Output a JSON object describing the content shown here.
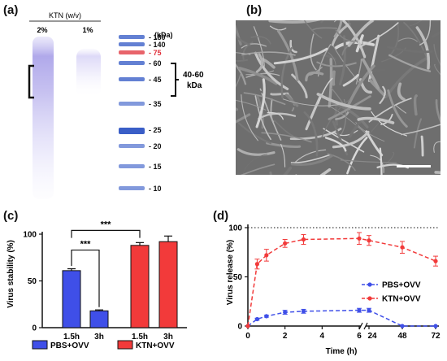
{
  "panel_a": {
    "label": "(a)",
    "header": "KTN (w/v)",
    "lanes": [
      "2%",
      "1%"
    ],
    "unit": "(kDa)",
    "markers": [
      {
        "text": "180",
        "kda": 180,
        "highlight": false
      },
      {
        "text": "140",
        "kda": 140,
        "highlight": false
      },
      {
        "text": "75",
        "kda": 75,
        "highlight": true
      },
      {
        "text": "60",
        "kda": 60,
        "highlight": false
      },
      {
        "text": "45",
        "kda": 45,
        "highlight": false
      },
      {
        "text": "35",
        "kda": 35,
        "highlight": false
      },
      {
        "text": "25",
        "kda": 25,
        "highlight": false
      },
      {
        "text": "20",
        "kda": 20,
        "highlight": false
      },
      {
        "text": "15",
        "kda": 15,
        "highlight": false
      },
      {
        "text": "10",
        "kda": 10,
        "highlight": false
      }
    ],
    "range_label_1": "40-60",
    "range_label_2": "kDa",
    "colors": {
      "band": "#8f86d6",
      "marker_blue": "#2f55c4",
      "marker_red": "#e0303a",
      "smear": "#c3bdf0"
    }
  },
  "panel_b": {
    "label": "(b)"
  },
  "chart_data": [
    {
      "panel": "(c)",
      "type": "bar",
      "ylabel": "Virus stability (%)",
      "ylim": [
        0,
        100
      ],
      "yticks": [
        "0",
        "50",
        "100"
      ],
      "categories": [
        "1.5h",
        "3h",
        "1.5h",
        "3h"
      ],
      "groups": [
        {
          "name": "PBS+OVV",
          "color": "#3f4fe8",
          "values": [
            61,
            18
          ],
          "errors": [
            2,
            1
          ]
        },
        {
          "name": "KTN+OVV",
          "color": "#f23a3a",
          "values": [
            88,
            92
          ],
          "errors": [
            3,
            6
          ]
        }
      ],
      "significance": [
        "***",
        "***"
      ]
    },
    {
      "panel": "(d)",
      "type": "line",
      "ylabel": "Virus release (%)",
      "xlabel": "Time (h)",
      "ylim": [
        0,
        100
      ],
      "yticks": [
        "0",
        "50",
        "100"
      ],
      "xticks": [
        "0",
        "2",
        "4",
        "6",
        "24",
        "48",
        "72"
      ],
      "reference_line": 100,
      "series": [
        {
          "name": "PBS+OVV",
          "color": "#3f4fe8",
          "x": [
            0,
            0.5,
            1,
            2,
            3,
            6,
            24,
            48,
            72
          ],
          "y": [
            0,
            7,
            10,
            14,
            15,
            16,
            16,
            0,
            0
          ],
          "err": [
            0,
            1,
            1,
            2,
            2,
            2,
            2,
            0,
            0
          ]
        },
        {
          "name": "KTN+OVV",
          "color": "#f23a3a",
          "x": [
            0,
            0.5,
            1,
            2,
            3,
            6,
            24,
            48,
            72
          ],
          "y": [
            0,
            63,
            72,
            84,
            88,
            89,
            87,
            80,
            66
          ],
          "err": [
            0,
            5,
            6,
            4,
            5,
            6,
            5,
            6,
            5
          ]
        }
      ]
    }
  ]
}
